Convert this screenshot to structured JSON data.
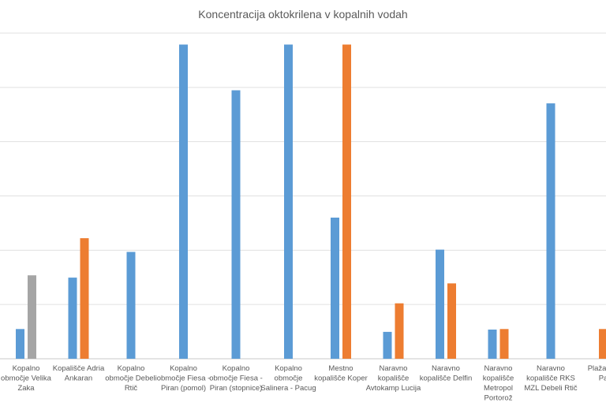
{
  "chart_data": {
    "type": "bar",
    "title": "Koncentracija oktokrilena v kopalnih vodah",
    "xlabel": "",
    "ylabel": "",
    "ylim": [
      0,
      5.7
    ],
    "grid": true,
    "categories": [
      [
        "Kopalno",
        "območje Velika",
        "Zaka"
      ],
      [
        "Kopališče Adria",
        "Ankaran"
      ],
      [
        "Kopalno",
        "območje Debeli",
        "Rtič"
      ],
      [
        "Kopalno",
        "območje Fiesa -",
        "Piran (pomol)"
      ],
      [
        "Kopalno",
        "območje Fiesa -",
        "Piran (stopnice)"
      ],
      [
        "Kopalno",
        "območje",
        "Salinera - Pacug"
      ],
      [
        "Mestno",
        "kopališče Koper"
      ],
      [
        "Naravno",
        "kopališče",
        "Avtokamp Lucija"
      ],
      [
        "Naravno",
        "kopališče Delfin"
      ],
      [
        "Naravno",
        "kopališče",
        "Metropol",
        "Portorož"
      ],
      [
        "Naravno",
        "kopališče RKS",
        "MZL Debeli Rtič"
      ],
      [
        "Plaža hot",
        "Pa"
      ]
    ],
    "series": [
      {
        "color": "#5b9bd5",
        "values": [
          0.52,
          1.42,
          1.87,
          5.5,
          4.7,
          5.5,
          2.47,
          0.47,
          1.91,
          0.51,
          4.47,
          0
        ]
      },
      {
        "color": "#ed7d31",
        "values": [
          0,
          2.11,
          0,
          0,
          0,
          0,
          5.5,
          0.97,
          1.32,
          0.52,
          0,
          0.52
        ]
      },
      {
        "color": "#a5a5a5",
        "values": [
          1.46,
          0,
          0,
          0,
          0,
          0,
          0,
          0,
          0,
          0,
          0,
          0
        ]
      }
    ]
  }
}
